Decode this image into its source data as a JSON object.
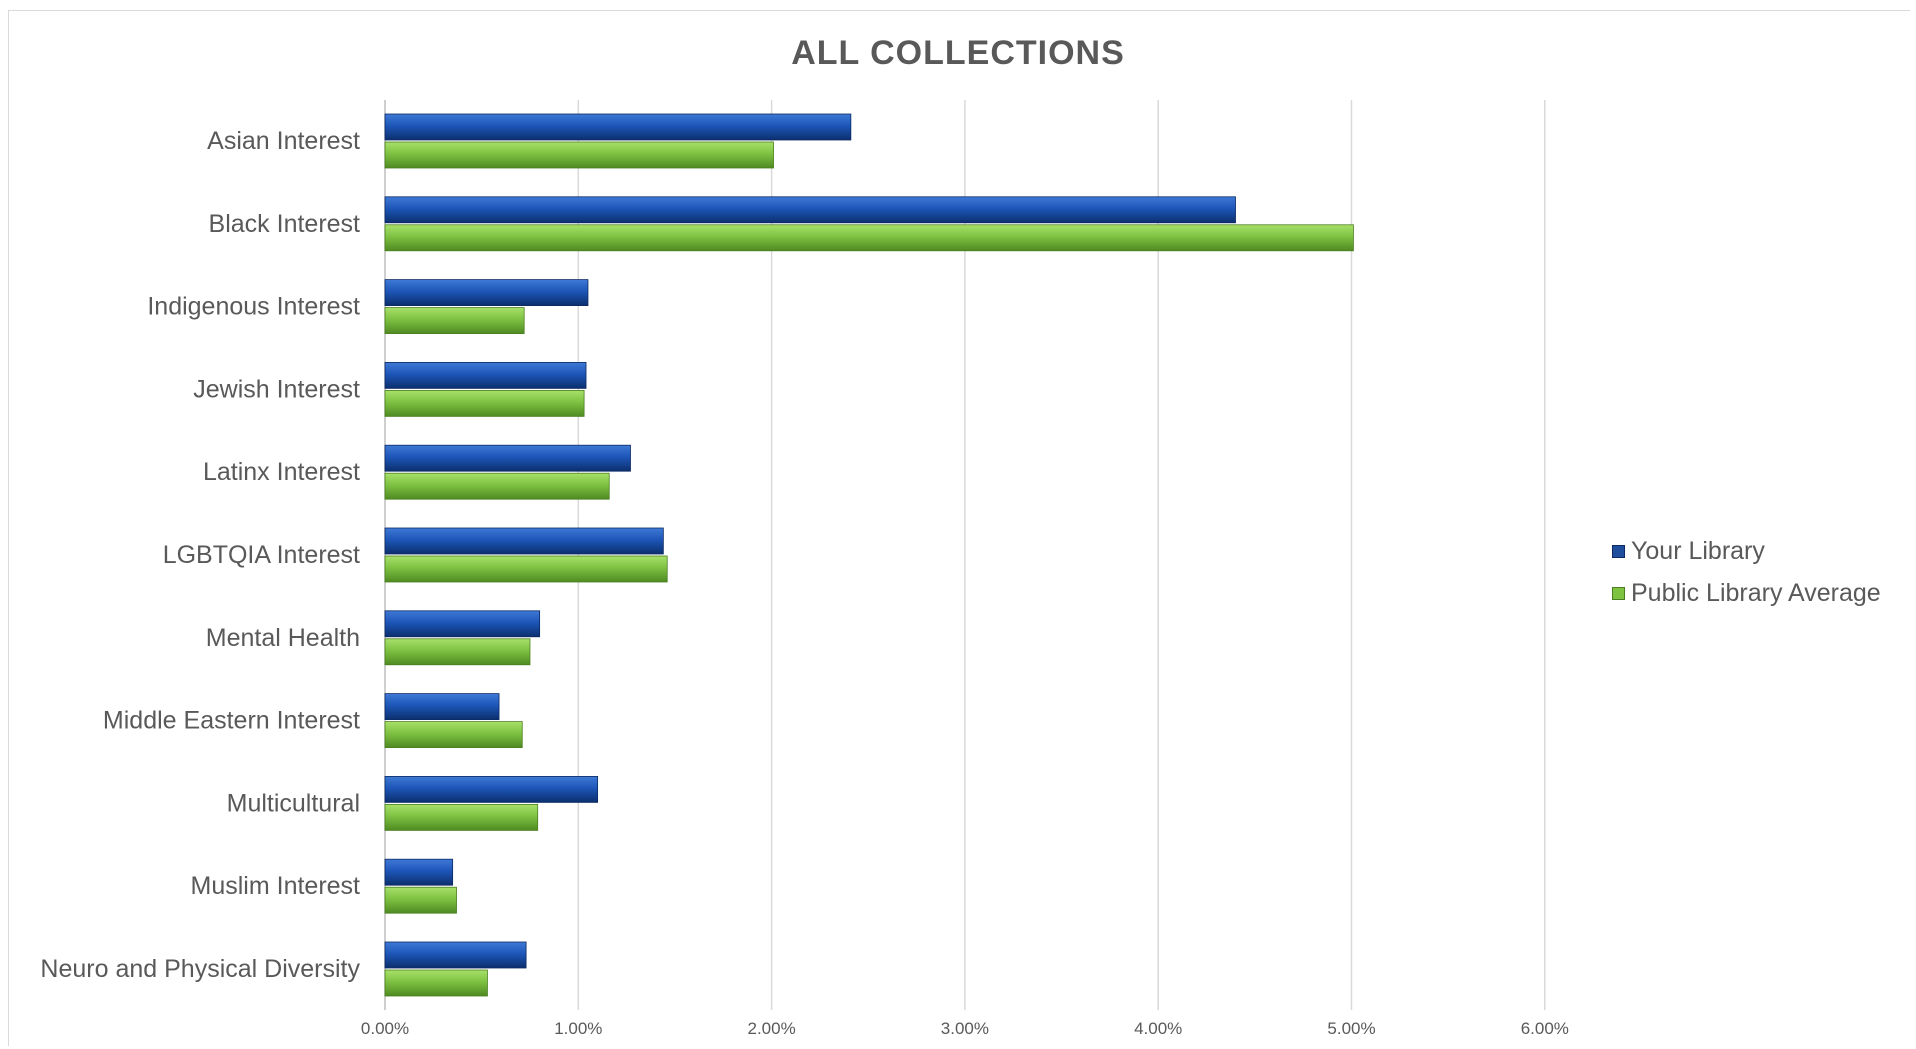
{
  "chart_data": {
    "type": "bar",
    "orientation": "horizontal",
    "title": "ALL COLLECTIONS",
    "categories": [
      "Asian Interest",
      "Black Interest",
      "Indigenous Interest",
      "Jewish Interest",
      "Latinx Interest",
      "LGBTQIA Interest",
      "Mental Health",
      "Middle Eastern Interest",
      "Multicultural",
      "Muslim Interest",
      "Neuro and Physical Diversity"
    ],
    "series": [
      {
        "name": "Your Library",
        "color": "#1f4e9c",
        "values": [
          2.41,
          4.4,
          1.05,
          1.04,
          1.27,
          1.44,
          0.8,
          0.59,
          1.1,
          0.35,
          0.73
        ]
      },
      {
        "name": "Public Library Average",
        "color": "#7ec242",
        "values": [
          2.01,
          5.01,
          0.72,
          1.03,
          1.16,
          1.46,
          0.75,
          0.71,
          0.79,
          0.37,
          0.53
        ]
      }
    ],
    "xlim": [
      0,
      6
    ],
    "x_ticks": [
      "0.00%",
      "1.00%",
      "2.00%",
      "3.00%",
      "4.00%",
      "5.00%",
      "6.00%"
    ],
    "x_unit": "%",
    "xlabel": "",
    "ylabel": "",
    "grid": true,
    "legend_position": "right"
  }
}
